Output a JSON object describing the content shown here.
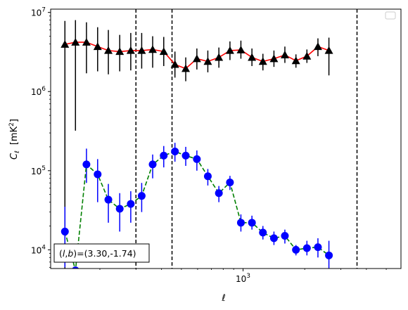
{
  "chart_data": {
    "type": "scatter",
    "xscale": "log",
    "yscale": "log",
    "xlim": [
      115,
      5900
    ],
    "ylim": [
      5800,
      11000000
    ],
    "xlabel": "ℓ",
    "ylabel_main": "C",
    "ylabel_sub": "ℓ",
    "ylabel_unit": "[mK",
    "ylabel_unit_sup": "2",
    "ylabel_unit_close": "]",
    "x_tick_labels": [
      {
        "value": 1000,
        "base": "10",
        "exp": "3"
      }
    ],
    "y_tick_labels": [
      {
        "value": 10000,
        "base": "10",
        "exp": "4"
      },
      {
        "value": 100000,
        "base": "10",
        "exp": "5"
      },
      {
        "value": 1000000,
        "base": "10",
        "exp": "6"
      },
      {
        "value": 10000000,
        "base": "10",
        "exp": "7"
      }
    ],
    "vlines": [
      300,
      450,
      3600
    ],
    "legend": "top-right",
    "annotation": {
      "prefix": "(",
      "l": "l",
      "comma": ",",
      "b": "b",
      "text": ")=(3.30,-1.74)"
    },
    "series": [
      {
        "marker": "triangle",
        "marker_color": "#000000",
        "line_color": "#ff0000",
        "line_style": "solid",
        "points": [
          {
            "x": 135,
            "y": 3950000,
            "ylo": 0,
            "yhi": 7800000
          },
          {
            "x": 152,
            "y": 4200000,
            "ylo": 320000,
            "yhi": 8000000
          },
          {
            "x": 172,
            "y": 4200000,
            "ylo": 1700000,
            "yhi": 7500000
          },
          {
            "x": 195,
            "y": 3700000,
            "ylo": 1800000,
            "yhi": 6500000
          },
          {
            "x": 220,
            "y": 3300000,
            "ylo": 1650000,
            "yhi": 6000000
          },
          {
            "x": 250,
            "y": 3200000,
            "ylo": 1800000,
            "yhi": 5200000
          },
          {
            "x": 283,
            "y": 3300000,
            "ylo": 1850000,
            "yhi": 5500000
          },
          {
            "x": 320,
            "y": 3300000,
            "ylo": 1950000,
            "yhi": 5500000
          },
          {
            "x": 362,
            "y": 3400000,
            "ylo": 2000000,
            "yhi": 5000000
          },
          {
            "x": 410,
            "y": 3200000,
            "ylo": 2100000,
            "yhi": 4900000
          },
          {
            "x": 465,
            "y": 2200000,
            "ylo": 1500000,
            "yhi": 3200000
          },
          {
            "x": 525,
            "y": 1950000,
            "ylo": 1350000,
            "yhi": 2700000
          },
          {
            "x": 595,
            "y": 2600000,
            "ylo": 1900000,
            "yhi": 3500000
          },
          {
            "x": 673,
            "y": 2400000,
            "ylo": 1750000,
            "yhi": 3300000
          },
          {
            "x": 762,
            "y": 2700000,
            "ylo": 2000000,
            "yhi": 3600000
          },
          {
            "x": 863,
            "y": 3300000,
            "ylo": 2500000,
            "yhi": 4300000
          },
          {
            "x": 976,
            "y": 3350000,
            "ylo": 2600000,
            "yhi": 4400000
          },
          {
            "x": 1105,
            "y": 2700000,
            "ylo": 2100000,
            "yhi": 3500000
          },
          {
            "x": 1250,
            "y": 2400000,
            "ylo": 1850000,
            "yhi": 3000000
          },
          {
            "x": 1415,
            "y": 2600000,
            "ylo": 2050000,
            "yhi": 3300000
          },
          {
            "x": 1600,
            "y": 2900000,
            "ylo": 2300000,
            "yhi": 3700000
          },
          {
            "x": 1812,
            "y": 2450000,
            "ylo": 2000000,
            "yhi": 2950000
          },
          {
            "x": 2050,
            "y": 2800000,
            "ylo": 2300000,
            "yhi": 3400000
          },
          {
            "x": 2320,
            "y": 3700000,
            "ylo": 2800000,
            "yhi": 4700000
          },
          {
            "x": 2625,
            "y": 3300000,
            "ylo": 1600000,
            "yhi": 4800000
          }
        ]
      },
      {
        "marker": "circle",
        "marker_color": "#0000ff",
        "line_color": "#008000",
        "line_style": "dashed",
        "points": [
          {
            "x": 135,
            "y": 17000,
            "ylo": 6000,
            "yhi": 35000
          },
          {
            "x": 152,
            "y": 5500,
            "ylo": 5500,
            "yhi": 5500
          },
          {
            "x": 172,
            "y": 120000,
            "ylo": 70000,
            "yhi": 190000
          },
          {
            "x": 195,
            "y": 90000,
            "ylo": 40000,
            "yhi": 140000
          },
          {
            "x": 220,
            "y": 43000,
            "ylo": 22000,
            "yhi": 68000
          },
          {
            "x": 250,
            "y": 33000,
            "ylo": 17000,
            "yhi": 52000
          },
          {
            "x": 283,
            "y": 38000,
            "ylo": 22000,
            "yhi": 55000
          },
          {
            "x": 320,
            "y": 48000,
            "ylo": 30000,
            "yhi": 70000
          },
          {
            "x": 362,
            "y": 120000,
            "ylo": 80000,
            "yhi": 160000
          },
          {
            "x": 410,
            "y": 155000,
            "ylo": 110000,
            "yhi": 205000
          },
          {
            "x": 465,
            "y": 175000,
            "ylo": 130000,
            "yhi": 225000
          },
          {
            "x": 525,
            "y": 155000,
            "ylo": 115000,
            "yhi": 200000
          },
          {
            "x": 595,
            "y": 140000,
            "ylo": 100000,
            "yhi": 180000
          },
          {
            "x": 673,
            "y": 85000,
            "ylo": 65000,
            "yhi": 105000
          },
          {
            "x": 762,
            "y": 52000,
            "ylo": 40000,
            "yhi": 64000
          },
          {
            "x": 863,
            "y": 71000,
            "ylo": 57000,
            "yhi": 86000
          },
          {
            "x": 976,
            "y": 22000,
            "ylo": 17000,
            "yhi": 28000
          },
          {
            "x": 1105,
            "y": 22000,
            "ylo": 18000,
            "yhi": 27000
          },
          {
            "x": 1250,
            "y": 16500,
            "ylo": 13500,
            "yhi": 20000
          },
          {
            "x": 1415,
            "y": 14000,
            "ylo": 11500,
            "yhi": 17000
          },
          {
            "x": 1600,
            "y": 15000,
            "ylo": 12000,
            "yhi": 18000
          },
          {
            "x": 1812,
            "y": 10000,
            "ylo": 8500,
            "yhi": 11500
          },
          {
            "x": 2050,
            "y": 10500,
            "ylo": 8500,
            "yhi": 13000
          },
          {
            "x": 2320,
            "y": 10800,
            "ylo": 8000,
            "yhi": 14000
          },
          {
            "x": 2625,
            "y": 8500,
            "ylo": 5800,
            "yhi": 13000
          }
        ]
      }
    ]
  }
}
